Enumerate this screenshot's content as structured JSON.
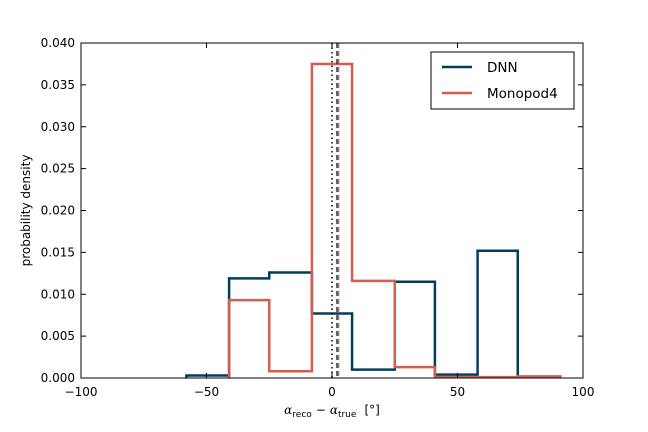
{
  "chart_data": {
    "type": "line",
    "step_histogram": true,
    "xlabel": {
      "symbol": "α",
      "sub1": "reco",
      "minus": "−",
      "sub2": "true",
      "unit": "[°]"
    },
    "ylabel": "probability density",
    "xlim": [
      -100,
      100
    ],
    "ylim": [
      0,
      0.04
    ],
    "xticks": [
      -100,
      -50,
      0,
      50,
      100
    ],
    "xtick_labels": [
      "−100",
      "−50",
      "0",
      "50",
      "100"
    ],
    "yticks": [
      0.0,
      0.005,
      0.01,
      0.015,
      0.02,
      0.025,
      0.03,
      0.035,
      0.04
    ],
    "ytick_labels": [
      "0.000",
      "0.005",
      "0.010",
      "0.015",
      "0.020",
      "0.025",
      "0.030",
      "0.035",
      "0.040"
    ],
    "grid": false,
    "legend_position": "top-right",
    "zero_line": {
      "x": 0,
      "style": "dotted",
      "color": "#000000"
    },
    "series": [
      {
        "name": "DNN",
        "color": "#003f5c",
        "bin_edges": [
          -58,
          -41,
          -25,
          -8,
          8,
          25,
          41,
          58,
          74
        ],
        "values": [
          0.0003,
          0.0119,
          0.0126,
          0.0077,
          0.001,
          0.0115,
          0.0004,
          0.0152
        ],
        "median_line": 2.0
      },
      {
        "name": "Monopod4",
        "color": "#d45d4f",
        "bin_edges": [
          -41,
          -25,
          -8,
          8,
          25,
          41,
          58,
          74,
          91
        ],
        "values": [
          0.0093,
          0.0008,
          0.0375,
          0.0116,
          0.0013,
          0.0001,
          0.0001,
          0.0002
        ],
        "median_line": 2.6
      }
    ]
  }
}
